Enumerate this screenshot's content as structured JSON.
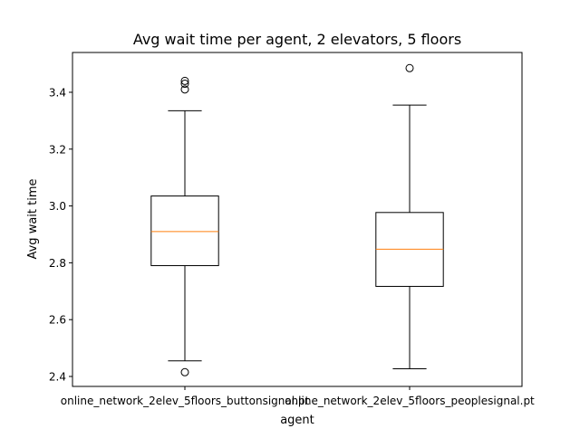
{
  "chart_data": {
    "type": "box",
    "title": "Avg wait time per agent, 2 elevators, 5 floors",
    "xlabel": "agent",
    "ylabel": "Avg wait time",
    "ylim": [
      2.365,
      3.54
    ],
    "yticks": [
      2.4,
      2.6,
      2.8,
      3.0,
      3.2,
      3.4
    ],
    "ytick_labels": [
      "2.4",
      "2.6",
      "2.8",
      "3.0",
      "3.2",
      "3.4"
    ],
    "grid": false,
    "categories": [
      "online_network_2elev_5floors_buttonsignal.pt",
      "online_network_2elev_5floors_peoplesignal.pt"
    ],
    "boxes": [
      {
        "category": "online_network_2elev_5floors_buttonsignal.pt",
        "whisker_low": 2.455,
        "q1": 2.79,
        "median": 2.91,
        "q3": 3.035,
        "whisker_high": 3.335,
        "outliers": [
          2.415,
          3.41,
          3.43,
          3.44
        ]
      },
      {
        "category": "online_network_2elev_5floors_peoplesignal.pt",
        "whisker_low": 2.427,
        "q1": 2.717,
        "median": 2.848,
        "q3": 2.977,
        "whisker_high": 3.355,
        "outliers": [
          3.485
        ]
      }
    ],
    "colors": {
      "box": "#000000",
      "median": "#ff7f0e",
      "outlier": "#000000",
      "axes": "#000000"
    }
  }
}
